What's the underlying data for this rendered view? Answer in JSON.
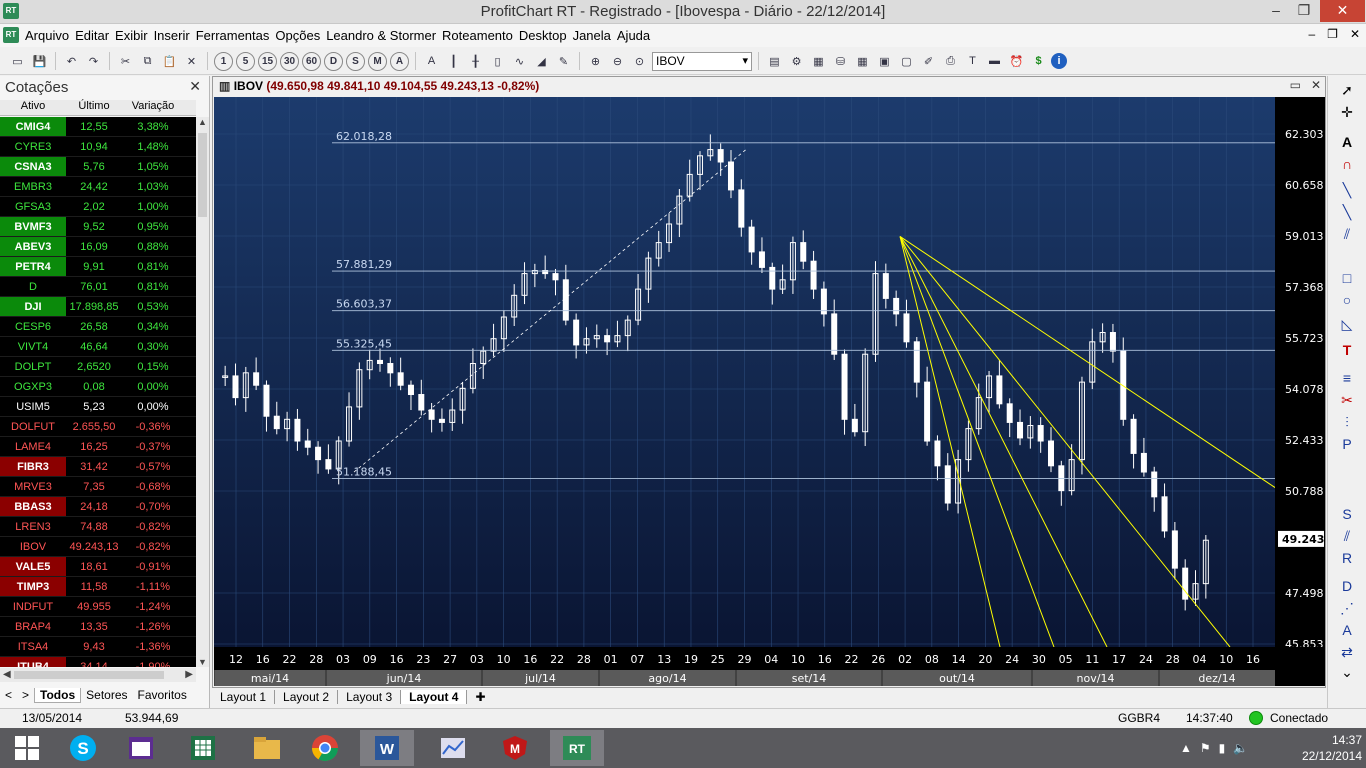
{
  "window": {
    "title": "ProfitChart RT - Registrado - [Ibovespa  - Diário - 22/12/2014]",
    "app_icon": "RT"
  },
  "menu": [
    "Arquivo",
    "Editar",
    "Exibir",
    "Inserir",
    "Ferramentas",
    "Opções",
    "Leandro & Stormer",
    "Roteamento",
    "Desktop",
    "Janela",
    "Ajuda"
  ],
  "toolbar": {
    "symbol_value": "IBOV",
    "period_buttons": [
      "1",
      "5",
      "15",
      "30",
      "60",
      "D",
      "S",
      "M",
      "A"
    ]
  },
  "cotacoes": {
    "title": "Cotações",
    "columns": [
      "Ativo",
      "Último",
      "Variação"
    ],
    "rows": [
      {
        "ativo": "CMIG4",
        "ultimo": "12,55",
        "variacao": "3,38%",
        "trend": "up",
        "hl": true
      },
      {
        "ativo": "CYRE3",
        "ultimo": "10,94",
        "variacao": "1,48%",
        "trend": "up",
        "hl": false
      },
      {
        "ativo": "CSNA3",
        "ultimo": "5,76",
        "variacao": "1,05%",
        "trend": "up",
        "hl": true
      },
      {
        "ativo": "EMBR3",
        "ultimo": "24,42",
        "variacao": "1,03%",
        "trend": "up",
        "hl": false
      },
      {
        "ativo": "GFSA3",
        "ultimo": "2,02",
        "variacao": "1,00%",
        "trend": "up",
        "hl": false
      },
      {
        "ativo": "BVMF3",
        "ultimo": "9,52",
        "variacao": "0,95%",
        "trend": "up",
        "hl": true
      },
      {
        "ativo": "ABEV3",
        "ultimo": "16,09",
        "variacao": "0,88%",
        "trend": "up",
        "hl": true
      },
      {
        "ativo": "PETR4",
        "ultimo": "9,91",
        "variacao": "0,81%",
        "trend": "up",
        "hl": true
      },
      {
        "ativo": "D",
        "ultimo": "76,01",
        "variacao": "0,81%",
        "trend": "up",
        "hl": false
      },
      {
        "ativo": "DJI",
        "ultimo": "17.898,85",
        "variacao": "0,53%",
        "trend": "up",
        "hl": true
      },
      {
        "ativo": "CESP6",
        "ultimo": "26,58",
        "variacao": "0,34%",
        "trend": "up",
        "hl": false
      },
      {
        "ativo": "VIVT4",
        "ultimo": "46,64",
        "variacao": "0,30%",
        "trend": "up",
        "hl": false
      },
      {
        "ativo": "DOLPT",
        "ultimo": "2,6520",
        "variacao": "0,15%",
        "trend": "up",
        "hl": false
      },
      {
        "ativo": "OGXP3",
        "ultimo": "0,08",
        "variacao": "0,00%",
        "trend": "up",
        "hl": false
      },
      {
        "ativo": "USIM5",
        "ultimo": "5,23",
        "variacao": "0,00%",
        "trend": "ze",
        "hl": false
      },
      {
        "ativo": "DOLFUT",
        "ultimo": "2.655,50",
        "variacao": "-0,36%",
        "trend": "dn",
        "hl": false
      },
      {
        "ativo": "LAME4",
        "ultimo": "16,25",
        "variacao": "-0,37%",
        "trend": "dn",
        "hl": false
      },
      {
        "ativo": "FIBR3",
        "ultimo": "31,42",
        "variacao": "-0,57%",
        "trend": "dn",
        "hl": true
      },
      {
        "ativo": "MRVE3",
        "ultimo": "7,35",
        "variacao": "-0,68%",
        "trend": "dn",
        "hl": false
      },
      {
        "ativo": "BBAS3",
        "ultimo": "24,18",
        "variacao": "-0,70%",
        "trend": "dn",
        "hl": true
      },
      {
        "ativo": "LREN3",
        "ultimo": "74,88",
        "variacao": "-0,82%",
        "trend": "dn",
        "hl": false
      },
      {
        "ativo": "IBOV",
        "ultimo": "49.243,13",
        "variacao": "-0,82%",
        "trend": "dn",
        "hl": false
      },
      {
        "ativo": "VALE5",
        "ultimo": "18,61",
        "variacao": "-0,91%",
        "trend": "dn",
        "hl": true
      },
      {
        "ativo": "TIMP3",
        "ultimo": "11,58",
        "variacao": "-1,11%",
        "trend": "dn",
        "hl": true
      },
      {
        "ativo": "INDFUT",
        "ultimo": "49.955",
        "variacao": "-1,24%",
        "trend": "dn",
        "hl": false
      },
      {
        "ativo": "BRAP4",
        "ultimo": "13,35",
        "variacao": "-1,26%",
        "trend": "dn",
        "hl": false
      },
      {
        "ativo": "ITSA4",
        "ultimo": "9,43",
        "variacao": "-1,36%",
        "trend": "dn",
        "hl": false
      },
      {
        "ativo": "ITUB4",
        "ultimo": "34,14",
        "variacao": "-1,90%",
        "trend": "dn",
        "hl": true
      }
    ],
    "tabs": [
      "Todos",
      "Setores",
      "Favoritos"
    ]
  },
  "chart": {
    "header_symbol": "IBOV",
    "header_values": "(49.650,98  49.841,10  49.104,55  49.243,13  -0,82%)",
    "last_price_label": "49.243",
    "fib_labels": [
      "62.018,28",
      "57.881,29",
      "56.603,37",
      "55.325,45",
      "51.188,45"
    ],
    "day_ticks": [
      "12",
      "16",
      "22",
      "28",
      "03",
      "09",
      "16",
      "23",
      "27",
      "03",
      "10",
      "16",
      "22",
      "28",
      "01",
      "07",
      "13",
      "19",
      "25",
      "29",
      "04",
      "10",
      "16",
      "22",
      "26",
      "02",
      "08",
      "14",
      "20",
      "24",
      "30",
      "05",
      "11",
      "17",
      "24",
      "28",
      "04",
      "10",
      "16"
    ],
    "month_ticks": [
      "mai/14",
      "jun/14",
      "jul/14",
      "ago/14",
      "set/14",
      "out/14",
      "nov/14",
      "dez/14"
    ],
    "colors": {
      "background_top": "#1c3b6d",
      "background_bottom": "#0a1533",
      "candle": "#ffffff",
      "fib_line": "#b0c4de",
      "fan_line": "#ffff00"
    }
  },
  "chart_data": {
    "type": "candlestick",
    "title": "IBOV",
    "y_ticks": [
      "62.303",
      "60.658",
      "59.013",
      "57.368",
      "55.723",
      "54.078",
      "52.433",
      "50.788",
      "47.498",
      "45.853"
    ],
    "ylim": [
      45853,
      62303
    ],
    "x_period": "mai/14 – dez/14 (diário)",
    "close_path": [
      54500,
      53800,
      54600,
      54200,
      53200,
      52800,
      53100,
      52400,
      52200,
      51800,
      51500,
      52400,
      53500,
      54700,
      55000,
      54900,
      54600,
      54200,
      53900,
      53400,
      53100,
      53000,
      53400,
      54100,
      54900,
      55300,
      55700,
      56400,
      57100,
      57800,
      57900,
      57800,
      57600,
      56300,
      55500,
      55700,
      55800,
      55600,
      55800,
      56300,
      57300,
      58300,
      58800,
      59400,
      60300,
      61000,
      61600,
      61800,
      61400,
      60500,
      59300,
      58500,
      58000,
      57300,
      57600,
      58800,
      58200,
      57300,
      56500,
      55200,
      53100,
      52700,
      55200,
      57800,
      57000,
      56500,
      55600,
      54300,
      52400,
      51600,
      50400,
      51800,
      52800,
      53800,
      54500,
      53600,
      53000,
      52500,
      52900,
      52400,
      51600,
      50800,
      51800,
      54300,
      55600,
      55900,
      55300,
      53100,
      52000,
      51400,
      50600,
      49500,
      48300,
      47300,
      47800,
      49200
    ],
    "fib_levels": [
      62018.28,
      57881.29,
      56603.37,
      55325.45,
      51188.45
    ],
    "fan_origin": "02/out/14 ~59.000",
    "last_close": 49243.13,
    "change_pct": -0.82
  },
  "layout_tabs": [
    "Layout 1",
    "Layout 2",
    "Layout 3",
    "Layout 4"
  ],
  "status": {
    "date": "13/05/2014",
    "value": "53.944,69",
    "asset": "GGBR4",
    "time": "14:37:40",
    "connection": "Conectado"
  },
  "taskbar": {
    "time": "14:37",
    "date": "22/12/2014",
    "apps": [
      "windows-start",
      "skype",
      "calendar",
      "excel",
      "explorer",
      "chrome",
      "word",
      "performance",
      "mcafee",
      "profitchart"
    ]
  }
}
